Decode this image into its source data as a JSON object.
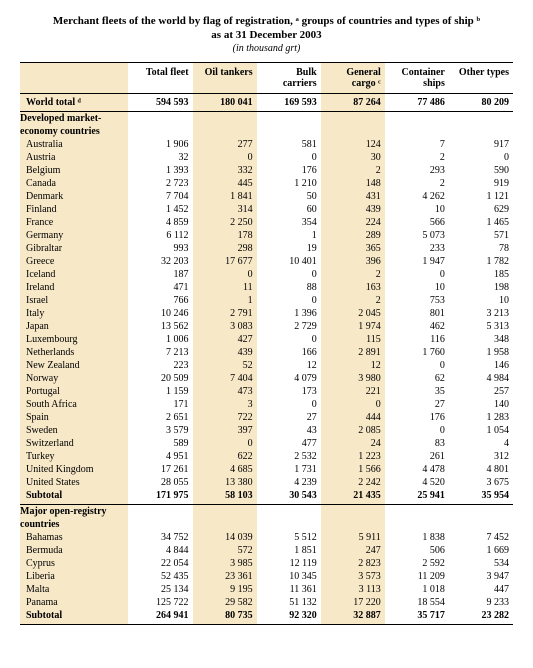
{
  "title_line1": "Merchant fleets of the world by flag of registration, ᵃ groups of countries and types of ship ᵇ",
  "title_line2": "as at 31 December 2003",
  "unit": "(in thousand grt)",
  "columns": [
    "",
    "Total fleet",
    "Oil tankers",
    "Bulk carriers",
    "General cargo ᶜ",
    "Container ships",
    "Other types"
  ],
  "world_label": "World total ᵈ",
  "world": [
    "594 593",
    "180 041",
    "169 593",
    "87 264",
    "77 486",
    "80 209"
  ],
  "section1_lines": [
    "Developed market-",
    "economy countries"
  ],
  "section1_rows": [
    {
      "label": "Australia",
      "v": [
        "1 906",
        "277",
        "581",
        "124",
        "7",
        "917"
      ]
    },
    {
      "label": "Austria",
      "v": [
        "32",
        "0",
        "0",
        "30",
        "2",
        "0"
      ]
    },
    {
      "label": "Belgium",
      "v": [
        "1 393",
        "332",
        "176",
        "2",
        "293",
        "590"
      ]
    },
    {
      "label": "Canada",
      "v": [
        "2 723",
        "445",
        "1 210",
        "148",
        "2",
        "919"
      ]
    },
    {
      "label": "Denmark",
      "v": [
        "7 704",
        "1 841",
        "50",
        "431",
        "4 262",
        "1 121"
      ]
    },
    {
      "label": "Finland",
      "v": [
        "1 452",
        "314",
        "60",
        "439",
        "10",
        "629"
      ]
    },
    {
      "label": "France",
      "v": [
        "4 859",
        "2 250",
        "354",
        "224",
        "566",
        "1 465"
      ]
    },
    {
      "label": "Germany",
      "v": [
        "6 112",
        "178",
        "1",
        "289",
        "5 073",
        "571"
      ]
    },
    {
      "label": "Gibraltar",
      "v": [
        "993",
        "298",
        "19",
        "365",
        "233",
        "78"
      ]
    },
    {
      "label": "Greece",
      "v": [
        "32 203",
        "17 677",
        "10 401",
        "396",
        "1 947",
        "1 782"
      ]
    },
    {
      "label": "Iceland",
      "v": [
        "187",
        "0",
        "0",
        "2",
        "0",
        "185"
      ]
    },
    {
      "label": "Ireland",
      "v": [
        "471",
        "11",
        "88",
        "163",
        "10",
        "198"
      ]
    },
    {
      "label": "Israel",
      "v": [
        "766",
        "1",
        "0",
        "2",
        "753",
        "10"
      ]
    },
    {
      "label": "Italy",
      "v": [
        "10 246",
        "2 791",
        "1 396",
        "2 045",
        "801",
        "3 213"
      ]
    },
    {
      "label": "Japan",
      "v": [
        "13 562",
        "3 083",
        "2 729",
        "1 974",
        "462",
        "5 313"
      ]
    },
    {
      "label": "Luxembourg",
      "v": [
        "1 006",
        "427",
        "0",
        "115",
        "116",
        "348"
      ]
    },
    {
      "label": "Netherlands",
      "v": [
        "7 213",
        "439",
        "166",
        "2 891",
        "1 760",
        "1 958"
      ]
    },
    {
      "label": "New Zealand",
      "v": [
        "223",
        "52",
        "12",
        "12",
        "0",
        "146"
      ]
    },
    {
      "label": "Norway",
      "v": [
        "20 509",
        "7 404",
        "4 079",
        "3 980",
        "62",
        "4 984"
      ]
    },
    {
      "label": "Portugal",
      "v": [
        "1 159",
        "473",
        "173",
        "221",
        "35",
        "257"
      ]
    },
    {
      "label": "South Africa",
      "v": [
        "171",
        "3",
        "0",
        "0",
        "27",
        "140"
      ]
    },
    {
      "label": "Spain",
      "v": [
        "2 651",
        "722",
        "27",
        "444",
        "176",
        "1 283"
      ]
    },
    {
      "label": "Sweden",
      "v": [
        "3 579",
        "397",
        "43",
        "2 085",
        "0",
        "1 054"
      ]
    },
    {
      "label": "Switzerland",
      "v": [
        "589",
        "0",
        "477",
        "24",
        "83",
        "4"
      ]
    },
    {
      "label": "Turkey",
      "v": [
        "4 951",
        "622",
        "2 532",
        "1 223",
        "261",
        "312"
      ]
    },
    {
      "label": "United Kingdom",
      "v": [
        "17 261",
        "4 685",
        "1 731",
        "1 566",
        "4 478",
        "4 801"
      ]
    },
    {
      "label": "United States",
      "v": [
        "28 055",
        "13 380",
        "4 239",
        "2 242",
        "4 520",
        "3 675"
      ]
    }
  ],
  "section1_subtotal": {
    "label": "Subtotal",
    "v": [
      "171 975",
      "58 103",
      "30 543",
      "21 435",
      "25 941",
      "35 954"
    ]
  },
  "section2_lines": [
    "Major open-registry",
    "countries"
  ],
  "section2_rows": [
    {
      "label": "Bahamas",
      "v": [
        "34 752",
        "14 039",
        "5 512",
        "5 911",
        "1 838",
        "7 452"
      ]
    },
    {
      "label": "Bermuda",
      "v": [
        "4 844",
        "572",
        "1 851",
        "247",
        "506",
        "1 669"
      ]
    },
    {
      "label": "Cyprus",
      "v": [
        "22 054",
        "3 985",
        "12 119",
        "2 823",
        "2 592",
        "534"
      ]
    },
    {
      "label": "Liberia",
      "v": [
        "52 435",
        "23 361",
        "10 345",
        "3 573",
        "11 209",
        "3 947"
      ]
    },
    {
      "label": "Malta",
      "v": [
        "25 134",
        "9 195",
        "11 361",
        "3 113",
        "1 018",
        "447"
      ]
    },
    {
      "label": "Panama",
      "v": [
        "125 722",
        "29 582",
        "51 132",
        "17 220",
        "18 554",
        "9 233"
      ]
    }
  ],
  "section2_subtotal": {
    "label": "Subtotal",
    "v": [
      "264 941",
      "80 735",
      "92 320",
      "32 887",
      "35 717",
      "23 282"
    ]
  },
  "highlight_cols": [
    0,
    2,
    4
  ],
  "highlight_bg": "#f7e8c8"
}
